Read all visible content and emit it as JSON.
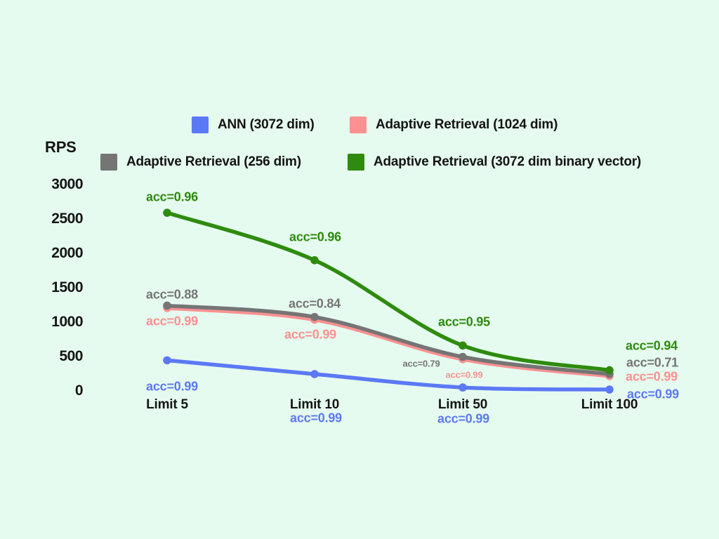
{
  "legend": {
    "items": [
      {
        "label": "ANN (3072 dim)",
        "color": "#5b79f5"
      },
      {
        "label": "Adaptive Retrieval (1024 dim)",
        "color": "#fb9191"
      },
      {
        "label": "Adaptive Retrieval (256 dim)",
        "color": "#757575"
      },
      {
        "label": "Adaptive Retrieval (3072 dim binary vector)",
        "color": "#2e8b0e"
      }
    ]
  },
  "chart_data": {
    "type": "line",
    "ylabel": "RPS",
    "categories": [
      "Limit 5",
      "Limit 10",
      "Limit 50",
      "Limit 100"
    ],
    "yticks": [
      "3000",
      "2500",
      "2000",
      "1500",
      "1000",
      "500",
      "0"
    ],
    "ylim": [
      0,
      3000
    ],
    "grid": false,
    "legend_position": "top",
    "background": "#e6fbef",
    "series": [
      {
        "name": "ANN (3072 dim)",
        "color": "#5b79f5",
        "values": [
          445,
          245,
          50,
          20
        ],
        "acc": [
          0.99,
          0.99,
          0.99,
          0.99
        ],
        "acc_labels": [
          "acc=0.99",
          "acc=0.99",
          "acc=0.99",
          "acc=0.99"
        ]
      },
      {
        "name": "Adaptive Retrieval (1024 dim)",
        "color": "#fb9191",
        "values": [
          1205,
          1035,
          460,
          215
        ],
        "acc": [
          0.99,
          0.99,
          0.99,
          0.99
        ],
        "acc_labels": [
          "acc=0.99",
          "acc=0.99",
          "acc=0.99",
          "acc=0.99"
        ]
      },
      {
        "name": "Adaptive Retrieval (256 dim)",
        "color": "#757575",
        "values": [
          1240,
          1075,
          495,
          245
        ],
        "acc": [
          0.88,
          0.84,
          0.79,
          0.71
        ],
        "acc_labels": [
          "acc=0.88",
          "acc=0.84",
          "acc=0.79",
          "acc=0.71"
        ]
      },
      {
        "name": "Adaptive Retrieval (3072 dim binary vector)",
        "color": "#2e8b0e",
        "values": [
          2590,
          1900,
          660,
          300
        ],
        "acc": [
          0.96,
          0.96,
          0.95,
          0.94
        ],
        "acc_labels": [
          "acc=0.96",
          "acc=0.96",
          "acc=0.95",
          "acc=0.94"
        ]
      }
    ]
  }
}
